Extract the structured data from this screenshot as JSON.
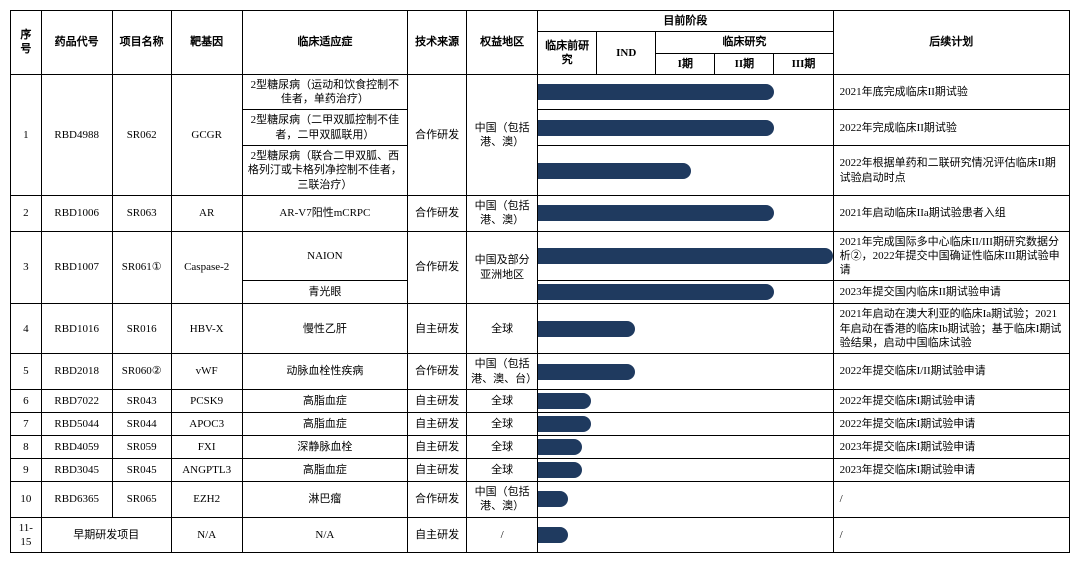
{
  "bar_color": "#1f3a5f",
  "headers": {
    "seq": "序号",
    "drug_code": "药品代号",
    "project_name": "项目名称",
    "target_gene": "靶基因",
    "indication": "临床适应症",
    "tech_source": "技术来源",
    "region": "权益地区",
    "current_stage": "目前阶段",
    "preclinical": "临床前研究",
    "ind": "IND",
    "clinical": "临床研究",
    "phase1": "I期",
    "phase2": "II期",
    "phase3": "III期",
    "future_plan": "后续计划"
  },
  "rows": [
    {
      "seq": "1",
      "code": "RBD4988",
      "proj": "SR062",
      "target": "GCGR",
      "src": "合作研发",
      "region": "中国（包括港、澳）",
      "sub": [
        {
          "ind": "2型糖尿病（运动和饮食控制不佳者，单药治疗）",
          "bar_pct": 80,
          "plan": "2021年底完成临床II期试验"
        },
        {
          "ind": "2型糖尿病（二甲双胍控制不佳者，二甲双胍联用）",
          "bar_pct": 80,
          "plan": "2022年完成临床II期试验"
        },
        {
          "ind": "2型糖尿病（联合二甲双胍、西格列汀或卡格列净控制不佳者，三联治疗）",
          "bar_pct": 52,
          "plan": "2022年根据单药和二联研究情况评估临床II期试验启动时点"
        }
      ]
    },
    {
      "seq": "2",
      "code": "RBD1006",
      "proj": "SR063",
      "target": "AR",
      "src": "合作研发",
      "region": "中国（包括港、澳）",
      "sub": [
        {
          "ind": "AR-V7阳性mCRPC",
          "bar_pct": 80,
          "plan": "2021年启动临床IIa期试验患者入组"
        }
      ]
    },
    {
      "seq": "3",
      "code": "RBD1007",
      "proj": "SR061①",
      "target": "Caspase-2",
      "src": "合作研发",
      "region": "中国及部分亚洲地区",
      "sub": [
        {
          "ind": "NAION",
          "bar_pct": 100,
          "plan": "2021年完成国际多中心临床II/III期研究数据分析②，2022年提交中国确证性临床III期试验申请"
        },
        {
          "ind": "青光眼",
          "bar_pct": 80,
          "plan": "2023年提交国内临床II期试验申请"
        }
      ]
    },
    {
      "seq": "4",
      "code": "RBD1016",
      "proj": "SR016",
      "target": "HBV-X",
      "src": "自主研发",
      "region": "全球",
      "sub": [
        {
          "ind": "慢性乙肝",
          "bar_pct": 33,
          "plan": "2021年启动在澳大利亚的临床Ia期试验；2021年启动在香港的临床Ib期试验；基于临床I期试验结果，启动中国临床试验"
        }
      ]
    },
    {
      "seq": "5",
      "code": "RBD2018",
      "proj": "SR060②",
      "target": "vWF",
      "src": "合作研发",
      "region": "中国（包括港、澳、台）",
      "sub": [
        {
          "ind": "动脉血栓性疾病",
          "bar_pct": 33,
          "plan": "2022年提交临床I/II期试验申请"
        }
      ]
    },
    {
      "seq": "6",
      "code": "RBD7022",
      "proj": "SR043",
      "target": "PCSK9",
      "src": "自主研发",
      "region": "全球",
      "sub": [
        {
          "ind": "高脂血症",
          "bar_pct": 18,
          "plan": "2022年提交临床I期试验申请"
        }
      ]
    },
    {
      "seq": "7",
      "code": "RBD5044",
      "proj": "SR044",
      "target": "APOC3",
      "src": "自主研发",
      "region": "全球",
      "sub": [
        {
          "ind": "高脂血症",
          "bar_pct": 18,
          "plan": "2022年提交临床I期试验申请"
        }
      ]
    },
    {
      "seq": "8",
      "code": "RBD4059",
      "proj": "SR059",
      "target": "FXI",
      "src": "自主研发",
      "region": "全球",
      "sub": [
        {
          "ind": "深静脉血栓",
          "bar_pct": 15,
          "plan": "2023年提交临床I期试验申请"
        }
      ]
    },
    {
      "seq": "9",
      "code": "RBD3045",
      "proj": "SR045",
      "target": "ANGPTL3",
      "src": "自主研发",
      "region": "全球",
      "sub": [
        {
          "ind": "高脂血症",
          "bar_pct": 15,
          "plan": "2023年提交临床I期试验申请"
        }
      ]
    },
    {
      "seq": "10",
      "code": "RBD6365",
      "proj": "SR065",
      "target": "EZH2",
      "src": "合作研发",
      "region": "中国（包括港、澳）",
      "sub": [
        {
          "ind": "淋巴瘤",
          "bar_pct": 10,
          "plan": "/"
        }
      ]
    },
    {
      "seq": "11-15",
      "code_merge_proj": true,
      "code": "早期研发项目",
      "proj": "",
      "target": "N/A",
      "src": "自主研发",
      "region": "/",
      "sub": [
        {
          "ind": "N/A",
          "bar_pct": 10,
          "plan": "/"
        }
      ]
    }
  ]
}
